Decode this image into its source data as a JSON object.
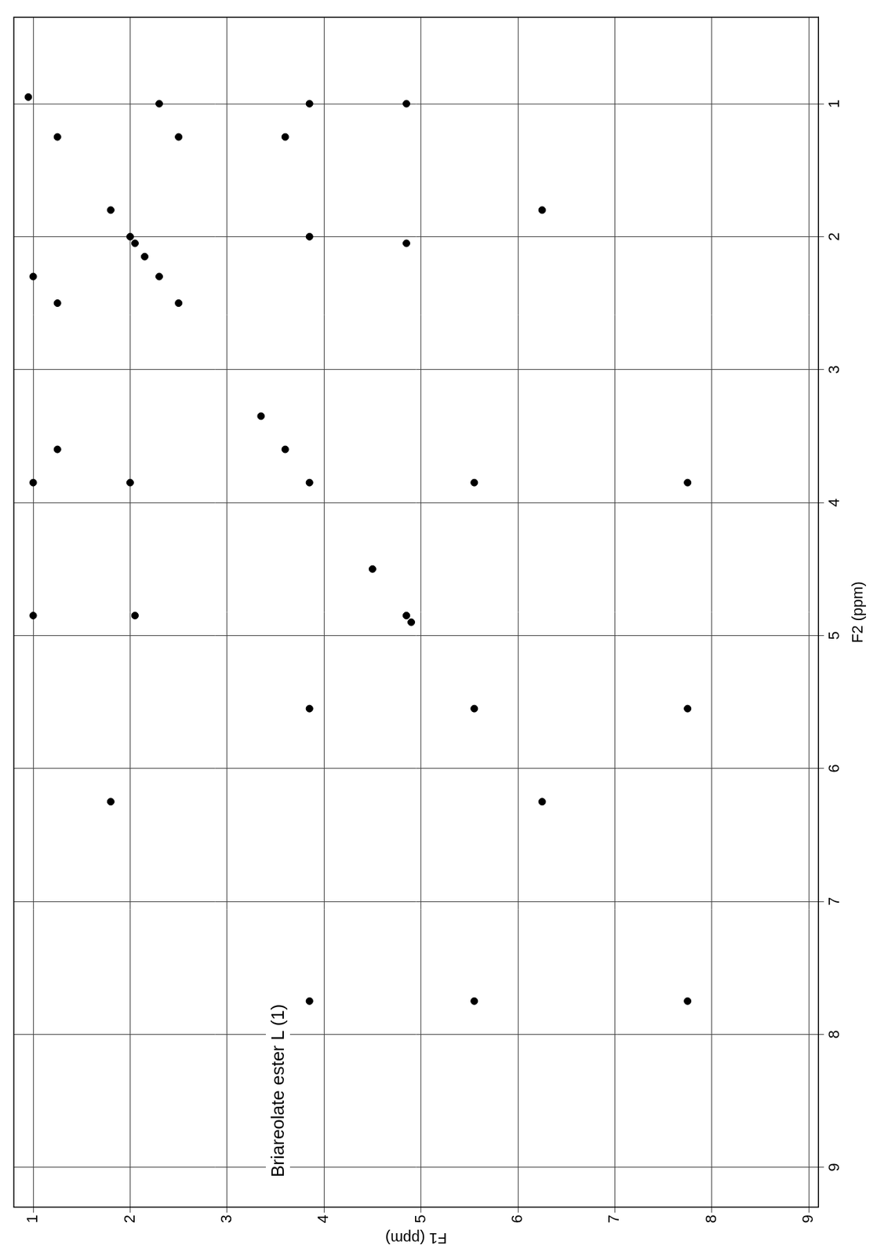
{
  "chart_data": {
    "type": "scatter",
    "x_label": "F2 (ppm)",
    "y_label": "F1 (ppm)",
    "annotation": "Briareolate ester L (1)",
    "x": [
      0.95,
      1.25,
      1.8,
      2.0,
      2.05,
      2.15,
      2.3,
      2.5,
      3.35,
      3.6,
      3.85,
      4.5,
      4.85,
      4.9,
      5.55,
      6.25,
      7.75,
      3.85,
      7.75,
      5.55,
      7.75,
      6.25,
      1.8,
      4.85,
      2.05,
      4.85,
      1.0,
      3.6,
      1.25,
      3.85,
      1.0,
      2.3,
      1.0,
      2.5,
      1.25,
      3.85,
      2.0,
      5.55,
      3.85
    ],
    "values": [
      0.95,
      1.25,
      1.8,
      2.0,
      2.05,
      2.15,
      2.3,
      2.5,
      3.35,
      3.6,
      3.85,
      4.5,
      4.85,
      4.9,
      5.55,
      6.25,
      7.75,
      7.75,
      3.85,
      7.75,
      5.55,
      1.8,
      6.25,
      2.05,
      4.85,
      1.0,
      4.85,
      1.25,
      3.6,
      1.0,
      3.85,
      1.0,
      2.3,
      1.25,
      2.5,
      2.0,
      3.85,
      3.85,
      5.55
    ],
    "xlim": [
      9.3,
      0.35
    ],
    "ylim": [
      9.1,
      0.8
    ],
    "xticks": [
      1,
      2,
      3,
      4,
      5,
      6,
      7,
      8,
      9
    ],
    "yticks": [
      1,
      2,
      3,
      4,
      5,
      6,
      7,
      8,
      9
    ],
    "grid": true,
    "color": "#000000",
    "marker": "circle"
  }
}
